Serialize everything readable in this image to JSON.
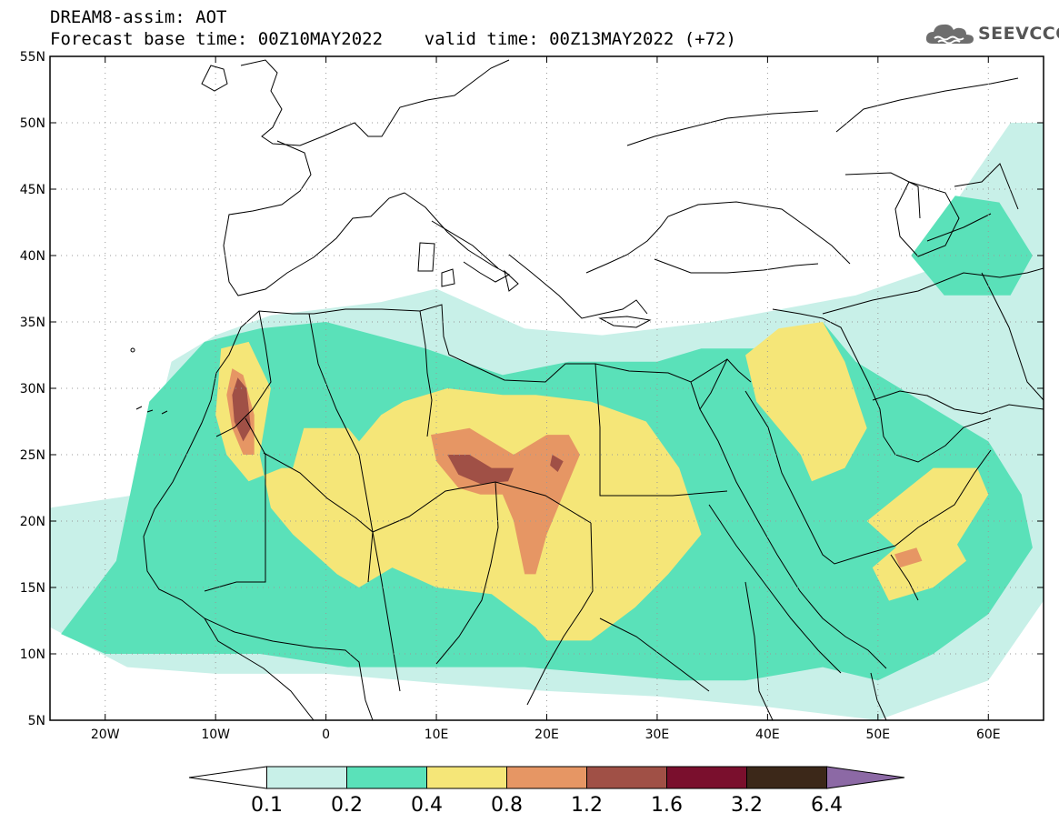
{
  "header": {
    "title_line1": "DREAM8-assim: AOT",
    "title_line2": "Forecast base time: 00Z10MAY2022    valid time: 00Z13MAY2022 (+72)"
  },
  "logo": {
    "text": "SEEVCCC",
    "icon": "cloud-icon"
  },
  "map": {
    "variable": "AOT",
    "projection": "lat-lon",
    "lon_range": [
      -25,
      65
    ],
    "lat_range": [
      5,
      55
    ],
    "grid": "dotted",
    "lat_ticks": [
      {
        "value": 55,
        "label": "55N"
      },
      {
        "value": 50,
        "label": "50N"
      },
      {
        "value": 45,
        "label": "45N"
      },
      {
        "value": 40,
        "label": "40N"
      },
      {
        "value": 35,
        "label": "35N"
      },
      {
        "value": 30,
        "label": "30N"
      },
      {
        "value": 25,
        "label": "25N"
      },
      {
        "value": 20,
        "label": "20N"
      },
      {
        "value": 15,
        "label": "15N"
      },
      {
        "value": 10,
        "label": "10N"
      },
      {
        "value": 5,
        "label": "5N"
      }
    ],
    "lon_ticks": [
      {
        "value": -20,
        "label": "20W"
      },
      {
        "value": -10,
        "label": "10W"
      },
      {
        "value": 0,
        "label": "0"
      },
      {
        "value": 10,
        "label": "10E"
      },
      {
        "value": 20,
        "label": "20E"
      },
      {
        "value": 30,
        "label": "30E"
      },
      {
        "value": 40,
        "label": "40E"
      },
      {
        "value": 50,
        "label": "50E"
      },
      {
        "value": 60,
        "label": "60E"
      }
    ],
    "field": [
      {
        "level": 0,
        "coords": [
          [
            -25,
            21
          ],
          [
            -17,
            22
          ],
          [
            -14,
            32
          ],
          [
            -10,
            34
          ],
          [
            -5,
            35.5
          ],
          [
            5,
            36.5
          ],
          [
            10,
            37.5
          ],
          [
            18,
            34.5
          ],
          [
            25,
            34
          ],
          [
            35,
            35
          ],
          [
            48,
            37
          ],
          [
            55,
            39
          ],
          [
            57,
            44
          ],
          [
            62,
            50
          ],
          [
            65,
            50
          ],
          [
            65,
            14
          ],
          [
            60,
            8
          ],
          [
            50,
            5
          ],
          [
            40,
            6
          ],
          [
            30,
            6.8
          ],
          [
            20,
            7.2
          ],
          [
            10,
            7.8
          ],
          [
            0,
            8.5
          ],
          [
            -10,
            8.5
          ],
          [
            -18,
            9
          ],
          [
            -25,
            12
          ]
        ]
      },
      {
        "level": 1,
        "coords": [
          [
            -24,
            11.5
          ],
          [
            -19,
            17
          ],
          [
            -16,
            29
          ],
          [
            -11,
            33.5
          ],
          [
            -6,
            34.5
          ],
          [
            0,
            35
          ],
          [
            9,
            33
          ],
          [
            16,
            31
          ],
          [
            22,
            32
          ],
          [
            30,
            32
          ],
          [
            34,
            33
          ],
          [
            40,
            33
          ],
          [
            45,
            35
          ],
          [
            48,
            32
          ],
          [
            52,
            30
          ],
          [
            56,
            28
          ],
          [
            60,
            26
          ],
          [
            63,
            22
          ],
          [
            64,
            18
          ],
          [
            60,
            13
          ],
          [
            55,
            10
          ],
          [
            50,
            8
          ],
          [
            45,
            9
          ],
          [
            38,
            8
          ],
          [
            32,
            8
          ],
          [
            25,
            8.5
          ],
          [
            18,
            9
          ],
          [
            10,
            9
          ],
          [
            2,
            9
          ],
          [
            -6,
            10
          ],
          [
            -14,
            10
          ],
          [
            -20,
            10
          ]
        ]
      },
      {
        "level": 1,
        "coords": [
          [
            53,
            40
          ],
          [
            57,
            44.5
          ],
          [
            61,
            44
          ],
          [
            64,
            40
          ],
          [
            62,
            37
          ],
          [
            56,
            37
          ]
        ]
      },
      {
        "level": 2,
        "coords": [
          [
            -9.5,
            33
          ],
          [
            -7,
            33.5
          ],
          [
            -5,
            30
          ],
          [
            -6,
            25
          ],
          [
            -5,
            21
          ],
          [
            -3,
            19
          ],
          [
            1,
            16
          ],
          [
            3,
            15
          ],
          [
            6,
            16.5
          ],
          [
            10,
            15
          ],
          [
            15,
            14.5
          ],
          [
            19,
            12
          ],
          [
            20,
            11
          ],
          [
            24,
            11
          ],
          [
            28,
            13.5
          ],
          [
            31,
            16
          ],
          [
            34,
            19
          ],
          [
            32,
            24
          ],
          [
            29,
            27.5
          ],
          [
            24,
            29
          ],
          [
            19,
            29.5
          ],
          [
            16,
            29.5
          ],
          [
            11,
            30
          ],
          [
            7,
            29
          ],
          [
            5,
            28
          ],
          [
            3,
            26
          ],
          [
            2,
            27
          ],
          [
            0,
            27
          ],
          [
            -2,
            27
          ],
          [
            -3,
            24
          ],
          [
            -4,
            24
          ],
          [
            -7,
            23
          ],
          [
            -9,
            25
          ],
          [
            -10,
            28
          ]
        ]
      },
      {
        "level": 2,
        "coords": [
          [
            38,
            32.5
          ],
          [
            41,
            34.5
          ],
          [
            45,
            35
          ],
          [
            47,
            32
          ],
          [
            49,
            27
          ],
          [
            47,
            24
          ],
          [
            44,
            23
          ],
          [
            43,
            25
          ],
          [
            41,
            27
          ],
          [
            39,
            29
          ]
        ]
      },
      {
        "level": 2,
        "coords": [
          [
            49,
            20
          ],
          [
            53,
            17
          ],
          [
            57,
            18
          ],
          [
            60,
            22
          ],
          [
            59,
            24
          ],
          [
            55,
            24
          ],
          [
            52,
            22
          ]
        ]
      },
      {
        "level": 2,
        "coords": [
          [
            49.5,
            16.5
          ],
          [
            53,
            19
          ],
          [
            56,
            20
          ],
          [
            58,
            17
          ],
          [
            55,
            15
          ],
          [
            51,
            14
          ]
        ]
      },
      {
        "level": 3,
        "coords": [
          [
            -8.5,
            31.5
          ],
          [
            -7.5,
            31
          ],
          [
            -6.5,
            28
          ],
          [
            -6.5,
            25
          ],
          [
            -7.5,
            25
          ],
          [
            -8.5,
            27
          ],
          [
            -9,
            29.5
          ]
        ]
      },
      {
        "level": 3,
        "coords": [
          [
            9.5,
            26.5
          ],
          [
            13,
            27
          ],
          [
            17,
            25
          ],
          [
            20,
            26.5
          ],
          [
            22,
            26.5
          ],
          [
            23,
            25
          ],
          [
            21.5,
            22
          ],
          [
            20,
            19
          ],
          [
            19,
            16
          ],
          [
            18,
            16
          ],
          [
            17,
            20
          ],
          [
            16,
            22
          ],
          [
            14,
            22
          ],
          [
            12,
            22.5
          ],
          [
            10,
            24.5
          ]
        ]
      },
      {
        "level": 3,
        "coords": [
          [
            51.5,
            17.5
          ],
          [
            53.5,
            18
          ],
          [
            54,
            17
          ],
          [
            52,
            16.5
          ]
        ]
      },
      {
        "level": 4,
        "coords": [
          [
            -8,
            30.8
          ],
          [
            -7.2,
            30
          ],
          [
            -6.8,
            27
          ],
          [
            -7.5,
            26
          ],
          [
            -8.3,
            27.5
          ],
          [
            -8.5,
            29.5
          ]
        ]
      },
      {
        "level": 4,
        "coords": [
          [
            11,
            25
          ],
          [
            13,
            25
          ],
          [
            15,
            24
          ],
          [
            17,
            24
          ],
          [
            16.5,
            23
          ],
          [
            14,
            22.8
          ],
          [
            12,
            23.5
          ]
        ]
      },
      {
        "level": 4,
        "coords": [
          [
            20.5,
            25
          ],
          [
            21.5,
            24.5
          ],
          [
            21,
            23.7
          ],
          [
            20.3,
            24.2
          ]
        ]
      }
    ]
  },
  "colorbar": {
    "colors": [
      "#ffffff",
      "#c8f0e8",
      "#5ae1b9",
      "#f5e678",
      "#e69664",
      "#a05046",
      "#7a0f2d",
      "#3c2819",
      "#8c69a5"
    ],
    "labels": [
      "0.1",
      "0.2",
      "0.4",
      "0.8",
      "1.2",
      "1.6",
      "3.2",
      "6.4"
    ]
  }
}
